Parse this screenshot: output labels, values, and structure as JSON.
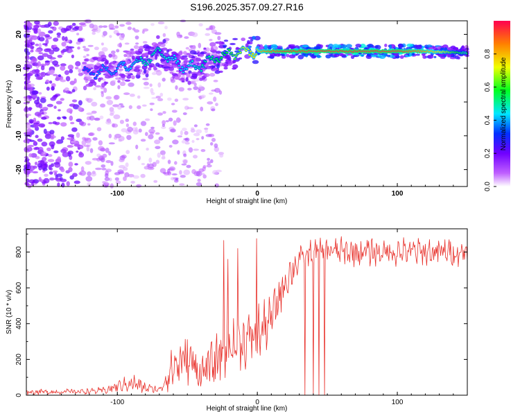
{
  "chart_data": [
    {
      "type": "heatmap",
      "title": "S196.2025.357.09.27.R16",
      "xlabel": "Height of straight line (km)",
      "ylabel": "Frequency (Hz)",
      "xlim": [
        -165,
        150
      ],
      "ylim": [
        -25,
        24
      ],
      "xticks": [
        -100,
        0,
        100
      ],
      "yticks": [
        -20,
        -10,
        0,
        10,
        20
      ],
      "colorbar": {
        "label": "Normalized spectral amplitude",
        "range": [
          0,
          1
        ],
        "ticks": [
          0.0,
          0.2,
          0.4,
          0.6,
          0.8
        ],
        "tick_labels": [
          "0.0",
          "0.2",
          "0.4",
          "0.6",
          "0.8"
        ],
        "colors": [
          "#ffffff",
          "#a000ff",
          "#0000ff",
          "#00ffff",
          "#00ff00",
          "#ffff00",
          "#ff8000",
          "#ff0040"
        ]
      },
      "ridge": {
        "x": [
          -122,
          -110,
          -100,
          -90,
          -80,
          -70,
          -60,
          -50,
          -40,
          -30,
          -20,
          -10,
          0,
          10,
          20,
          40,
          60,
          80,
          100,
          120,
          150
        ],
        "frequency": [
          8.5,
          9,
          10,
          11,
          12,
          15,
          12,
          10,
          11,
          13,
          14,
          15,
          15,
          15,
          15,
          15,
          15,
          15,
          15,
          15,
          14.5
        ],
        "amplitude": [
          0.35,
          0.4,
          0.4,
          0.45,
          0.5,
          0.5,
          0.45,
          0.45,
          0.5,
          0.55,
          0.6,
          0.7,
          0.8,
          0.9,
          0.95,
          0.95,
          0.95,
          0.95,
          0.95,
          0.85,
          0.5
        ]
      }
    },
    {
      "type": "line",
      "title": "",
      "xlabel": "Height of straight line (km)",
      "ylabel": "SNR (10 * v/v)",
      "xlim": [
        -165,
        150
      ],
      "ylim": [
        0,
        930
      ],
      "xticks": [
        -100,
        0,
        100
      ],
      "yticks": [
        0,
        200,
        400,
        600,
        800
      ],
      "color": "#e8302a",
      "envelope": {
        "x": [
          -165,
          -130,
          -110,
          -95,
          -90,
          -80,
          -70,
          -60,
          -50,
          -40,
          -30,
          -20,
          -10,
          0,
          10,
          20,
          30,
          40,
          50,
          60,
          80,
          100,
          120,
          150
        ],
        "mean": [
          18,
          20,
          25,
          60,
          70,
          40,
          30,
          160,
          200,
          130,
          180,
          280,
          300,
          330,
          430,
          640,
          760,
          800,
          810,
          800,
          800,
          800,
          800,
          800
        ],
        "spread": [
          15,
          15,
          20,
          40,
          60,
          30,
          20,
          130,
          150,
          120,
          150,
          150,
          150,
          180,
          120,
          120,
          80,
          70,
          70,
          80,
          80,
          80,
          80,
          80
        ]
      },
      "spikes": [
        {
          "x": -24,
          "y": 865
        },
        {
          "x": -21,
          "y": 760
        },
        {
          "x": -14,
          "y": 820
        },
        {
          "x": -0.5,
          "y": 875
        },
        {
          "x": 34,
          "y": 0
        },
        {
          "x": 40,
          "y": 0
        },
        {
          "x": 44,
          "y": 0
        },
        {
          "x": 48,
          "y": 0
        }
      ]
    }
  ]
}
